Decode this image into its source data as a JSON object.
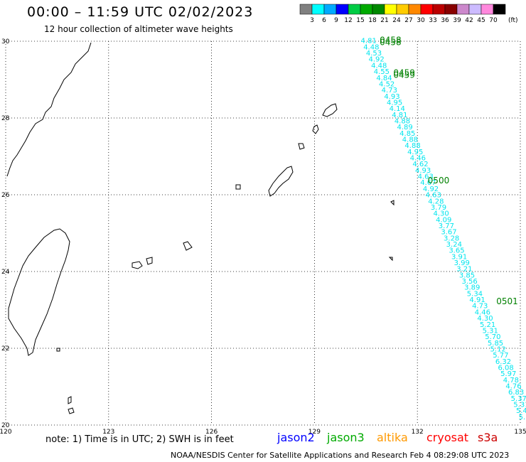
{
  "header": {
    "title": "00:00 – 11:59 UTC 02/02/2023",
    "subtitle": "12 hour collection of altimeter wave heights"
  },
  "legend": {
    "unit": "(ft)",
    "bins": [
      {
        "label": "3",
        "color": "#808080"
      },
      {
        "label": "6",
        "color": "#00ffff"
      },
      {
        "label": "9",
        "color": "#00aaff"
      },
      {
        "label": "12",
        "color": "#0000ff"
      },
      {
        "label": "15",
        "color": "#00cc44"
      },
      {
        "label": "18",
        "color": "#00aa00"
      },
      {
        "label": "21",
        "color": "#008800"
      },
      {
        "label": "24",
        "color": "#ffff00"
      },
      {
        "label": "27",
        "color": "#ffcc00"
      },
      {
        "label": "30",
        "color": "#ff8800"
      },
      {
        "label": "33",
        "color": "#ff0000"
      },
      {
        "label": "36",
        "color": "#bb0000"
      },
      {
        "label": "39",
        "color": "#880000"
      },
      {
        "label": "42",
        "color": "#cc88cc"
      },
      {
        "label": "45",
        "color": "#ccbbff"
      },
      {
        "label": "70",
        "color": "#ff88dd"
      },
      {
        "label": "",
        "color": "#000000"
      }
    ]
  },
  "map": {
    "lon_range": [
      120,
      135
    ],
    "lat_range": [
      20,
      30
    ],
    "lon_ticks": [
      "120",
      "123",
      "126",
      "129",
      "132",
      "135"
    ],
    "lat_ticks": [
      "30",
      "28",
      "26",
      "24",
      "22",
      "20"
    ],
    "track_color": "#00e5ee",
    "time_label_color": "#008000",
    "time_labels": [
      {
        "text": "0458",
        "lon": 130.9,
        "lat": 29.95
      },
      {
        "text": "0458",
        "lon": 130.9,
        "lat": 29.9
      },
      {
        "text": "0459",
        "lon": 131.3,
        "lat": 29.1
      },
      {
        "text": "0459",
        "lon": 131.3,
        "lat": 29.05
      },
      {
        "text": "0500",
        "lon": 132.3,
        "lat": 26.3
      },
      {
        "text": "0501",
        "lon": 134.3,
        "lat": 23.15
      }
    ],
    "wave_heights": [
      "4.81",
      "4.48",
      "4.53",
      "4.92",
      "4.48",
      "4.55",
      "4.84",
      "4.52",
      "4.73",
      "4.93",
      "4.95",
      "4.14",
      "4.81",
      "4.88",
      "4.89",
      "4.85",
      "4.88",
      "4.88",
      "4.95",
      "4.46",
      "4.62",
      "4.93",
      "4.63",
      "4.67",
      "4.92",
      "4.63",
      "4.28",
      "3.79",
      "4.30",
      "4.09",
      "3.77",
      "3.67",
      "3.28",
      "3.24",
      "3.65",
      "3.91",
      "3.99",
      "3.21",
      "3.85",
      "3.56",
      "3.89",
      "5.34",
      "4.91",
      "4.73",
      "4.46",
      "4.30",
      "5.21",
      "5.31",
      "5.70",
      "5.85",
      "5.12",
      "5.77",
      "6.32",
      "6.08",
      "5.97",
      "4.78",
      "4.76",
      "6.83",
      "5.37",
      "5.31",
      "5.4",
      "5."
    ]
  },
  "footer": {
    "note": "note: 1) Time is in UTC; 2) SWH is in feet",
    "satellites": [
      {
        "name": "jason2",
        "color": "#0000ff"
      },
      {
        "name": "jason3",
        "color": "#00aa00"
      },
      {
        "name": "altika",
        "color": "#ff9900"
      },
      {
        "name": "cryosat",
        "color": "#ff0000"
      },
      {
        "name": "s3a",
        "color": "#cc0000"
      }
    ],
    "credit": "NOAA/NESDIS Center for Satellite Applications and Research    Feb  4 08:29:08 UTC 2023"
  }
}
